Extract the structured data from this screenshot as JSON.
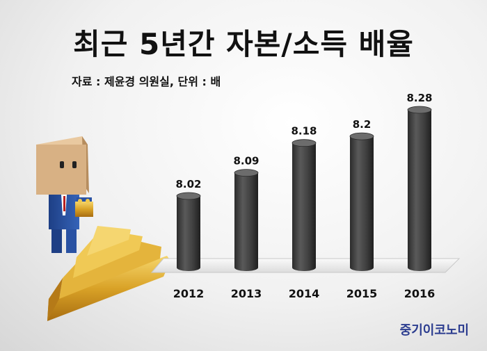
{
  "title": "최근 5년간 자본/소득 배율",
  "source": "자료 : 제윤경 의원실, 단위 : 배",
  "brand": "중기이코노미",
  "chart_data": {
    "type": "bar",
    "categories": [
      "2012",
      "2013",
      "2014",
      "2015",
      "2016"
    ],
    "values": [
      8.02,
      8.09,
      8.18,
      8.2,
      8.28
    ],
    "value_labels": [
      "8.02",
      "8.09",
      "8.18",
      "8.2",
      "8.28"
    ],
    "title": "최근 5년간 자본/소득 배율",
    "bar_color": "#4a4a4a",
    "grid": false
  }
}
